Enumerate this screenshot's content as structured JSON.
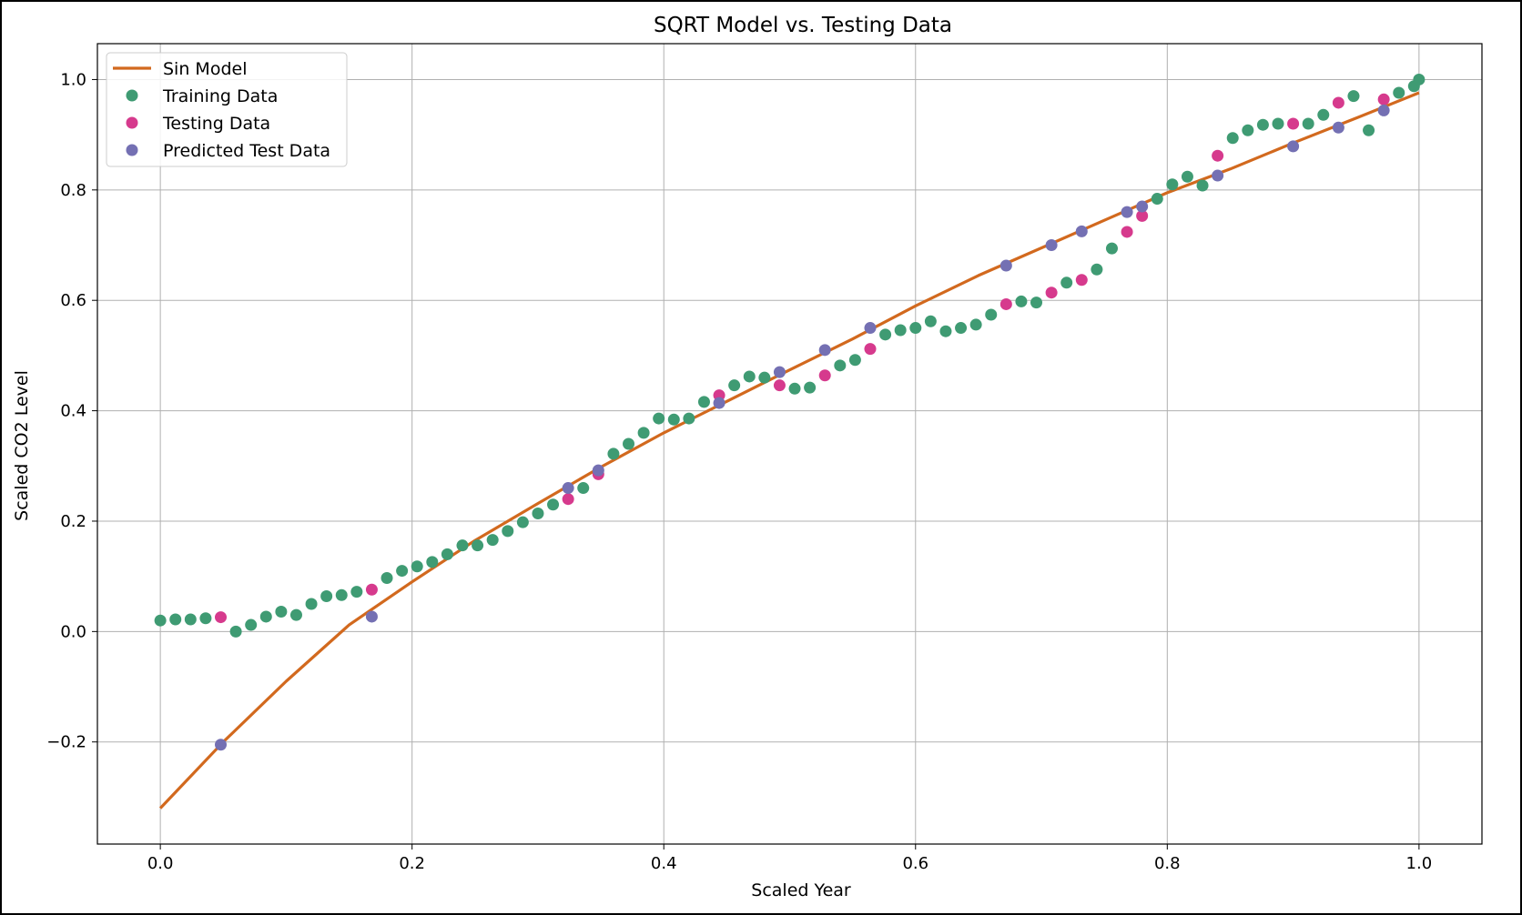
{
  "chart_data": {
    "type": "scatter",
    "title": "SQRT Model vs. Testing Data",
    "xlabel": "Scaled Year",
    "ylabel": "Scaled CO2 Level",
    "xlim": [
      -0.05,
      1.05
    ],
    "ylim": [
      -0.385,
      1.065
    ],
    "xticks": [
      0.0,
      0.2,
      0.4,
      0.6,
      0.8,
      1.0
    ],
    "xtick_labels": [
      "0.0",
      "0.2",
      "0.4",
      "0.6",
      "0.8",
      "1.0"
    ],
    "yticks": [
      -0.2,
      0.0,
      0.2,
      0.4,
      0.6,
      0.8,
      1.0
    ],
    "ytick_labels": [
      "−0.2",
      "0.0",
      "0.2",
      "0.4",
      "0.6",
      "0.8",
      "1.0"
    ],
    "grid": true,
    "legend_position": "top-left",
    "colors": {
      "model": "#d2691e",
      "training": "#3f9b73",
      "testing": "#d63a8d",
      "predicted": "#7470b3",
      "grid": "#b0b0b0"
    },
    "series": [
      {
        "name": "Sin Model",
        "kind": "line",
        "x": [
          0.0,
          0.05,
          0.1,
          0.15,
          0.2,
          0.25,
          0.3,
          0.35,
          0.4,
          0.45,
          0.5,
          0.55,
          0.6,
          0.65,
          0.7,
          0.75,
          0.8,
          0.85,
          0.9,
          0.95,
          1.0
        ],
        "y": [
          -0.32,
          -0.2,
          -0.09,
          0.012,
          0.09,
          0.165,
          0.232,
          0.298,
          0.36,
          0.417,
          0.474,
          0.53,
          0.59,
          0.645,
          0.695,
          0.745,
          0.795,
          0.838,
          0.885,
          0.93,
          0.976
        ]
      },
      {
        "name": "Training Data",
        "kind": "scatter",
        "x": [
          0.0,
          0.012,
          0.024,
          0.036,
          0.06,
          0.072,
          0.084,
          0.096,
          0.108,
          0.12,
          0.132,
          0.144,
          0.156,
          0.18,
          0.192,
          0.204,
          0.216,
          0.228,
          0.24,
          0.252,
          0.264,
          0.276,
          0.288,
          0.3,
          0.312,
          0.336,
          0.36,
          0.372,
          0.384,
          0.396,
          0.408,
          0.42,
          0.432,
          0.456,
          0.468,
          0.48,
          0.504,
          0.516,
          0.54,
          0.552,
          0.576,
          0.588,
          0.6,
          0.612,
          0.624,
          0.636,
          0.648,
          0.66,
          0.684,
          0.696,
          0.72,
          0.744,
          0.756,
          0.792,
          0.804,
          0.816,
          0.828,
          0.852,
          0.864,
          0.876,
          0.888,
          0.912,
          0.924,
          0.948,
          0.96,
          0.984,
          0.996,
          1.0
        ],
        "y": [
          0.02,
          0.022,
          0.022,
          0.024,
          0.0,
          0.012,
          0.027,
          0.036,
          0.03,
          0.05,
          0.064,
          0.066,
          0.072,
          0.097,
          0.11,
          0.118,
          0.126,
          0.14,
          0.156,
          0.156,
          0.166,
          0.182,
          0.198,
          0.214,
          0.23,
          0.26,
          0.322,
          0.34,
          0.36,
          0.386,
          0.384,
          0.386,
          0.416,
          0.446,
          0.462,
          0.46,
          0.44,
          0.442,
          0.482,
          0.492,
          0.538,
          0.546,
          0.55,
          0.562,
          0.544,
          0.55,
          0.556,
          0.574,
          0.598,
          0.596,
          0.632,
          0.656,
          0.694,
          0.784,
          0.81,
          0.824,
          0.808,
          0.894,
          0.908,
          0.918,
          0.92,
          0.92,
          0.936,
          0.97,
          0.908,
          0.976,
          0.988,
          1.0
        ]
      },
      {
        "name": "Testing Data",
        "kind": "scatter",
        "x": [
          0.048,
          0.168,
          0.324,
          0.348,
          0.444,
          0.492,
          0.528,
          0.564,
          0.672,
          0.708,
          0.732,
          0.768,
          0.78,
          0.84,
          0.9,
          0.936,
          0.972
        ],
        "y": [
          0.026,
          0.076,
          0.24,
          0.285,
          0.428,
          0.446,
          0.464,
          0.512,
          0.593,
          0.614,
          0.637,
          0.724,
          0.753,
          0.862,
          0.92,
          0.958,
          0.964
        ]
      },
      {
        "name": "Predicted Test Data",
        "kind": "scatter",
        "x": [
          0.048,
          0.168,
          0.324,
          0.348,
          0.444,
          0.492,
          0.528,
          0.564,
          0.672,
          0.708,
          0.732,
          0.768,
          0.78,
          0.84,
          0.9,
          0.936,
          0.972
        ],
        "y": [
          -0.205,
          0.027,
          0.26,
          0.292,
          0.414,
          0.47,
          0.51,
          0.55,
          0.663,
          0.7,
          0.725,
          0.76,
          0.77,
          0.826,
          0.879,
          0.913,
          0.944
        ]
      }
    ]
  }
}
